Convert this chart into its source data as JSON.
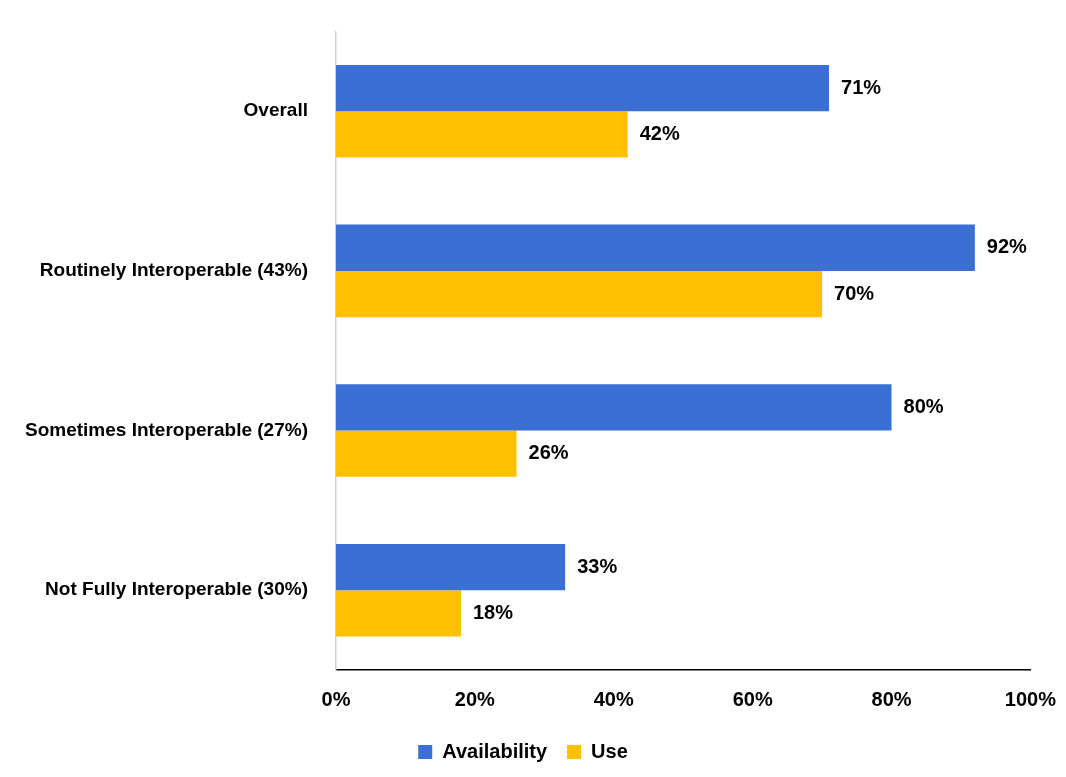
{
  "chart_data": {
    "type": "bar",
    "orientation": "horizontal",
    "categories": [
      "Overall",
      "Routinely Interoperable (43%)",
      "Sometimes Interoperable (27%)",
      "Not Fully Interoperable (30%)"
    ],
    "series": [
      {
        "name": "Availability",
        "color": "#3b6fd4",
        "values": [
          71,
          92,
          80,
          33
        ],
        "value_labels": [
          "71%",
          "92%",
          "80%",
          "33%"
        ]
      },
      {
        "name": "Use",
        "color": "#ffc000",
        "values": [
          42,
          70,
          26,
          18
        ],
        "value_labels": [
          "42%",
          "70%",
          "26%",
          "18%"
        ]
      }
    ],
    "xlim": [
      0,
      100
    ],
    "xticks": [
      {
        "value": 0,
        "label": "0%"
      },
      {
        "value": 20,
        "label": "20%"
      },
      {
        "value": 40,
        "label": "40%"
      },
      {
        "value": 60,
        "label": "60%"
      },
      {
        "value": 80,
        "label": "80%"
      },
      {
        "value": 100,
        "label": "100%"
      }
    ],
    "grid": false,
    "legend": "bottom"
  }
}
